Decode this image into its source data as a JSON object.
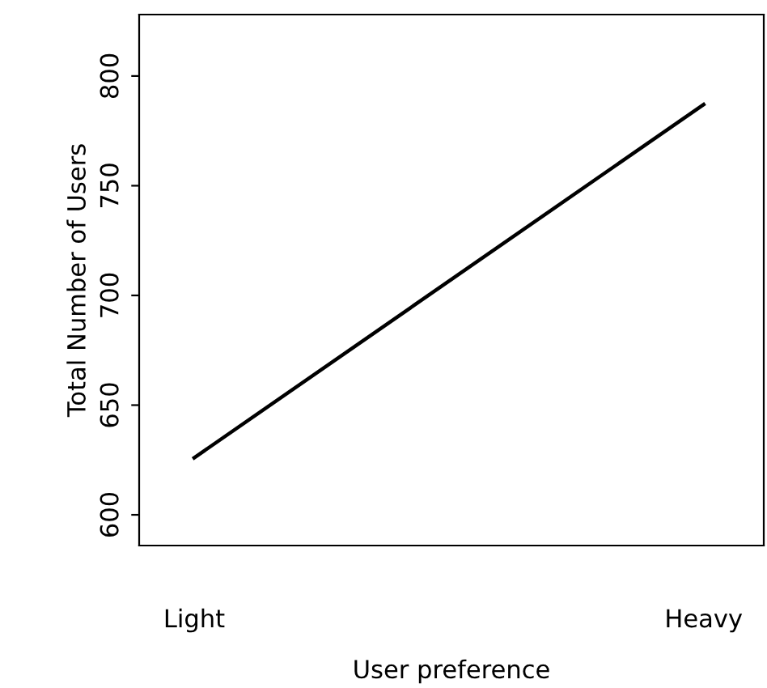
{
  "chart_data": {
    "type": "line",
    "xlabel": "User preference",
    "ylabel": "Total Number of Users",
    "categories": [
      "Light",
      "Heavy"
    ],
    "series": [
      {
        "color": "#000000",
        "values": [
          626,
          787
        ]
      }
    ],
    "ylim": [
      586,
      828
    ],
    "yticks": [
      600,
      650,
      700,
      750,
      800
    ],
    "grid": false,
    "legend": false,
    "marker": "none",
    "line_style": "solid"
  }
}
